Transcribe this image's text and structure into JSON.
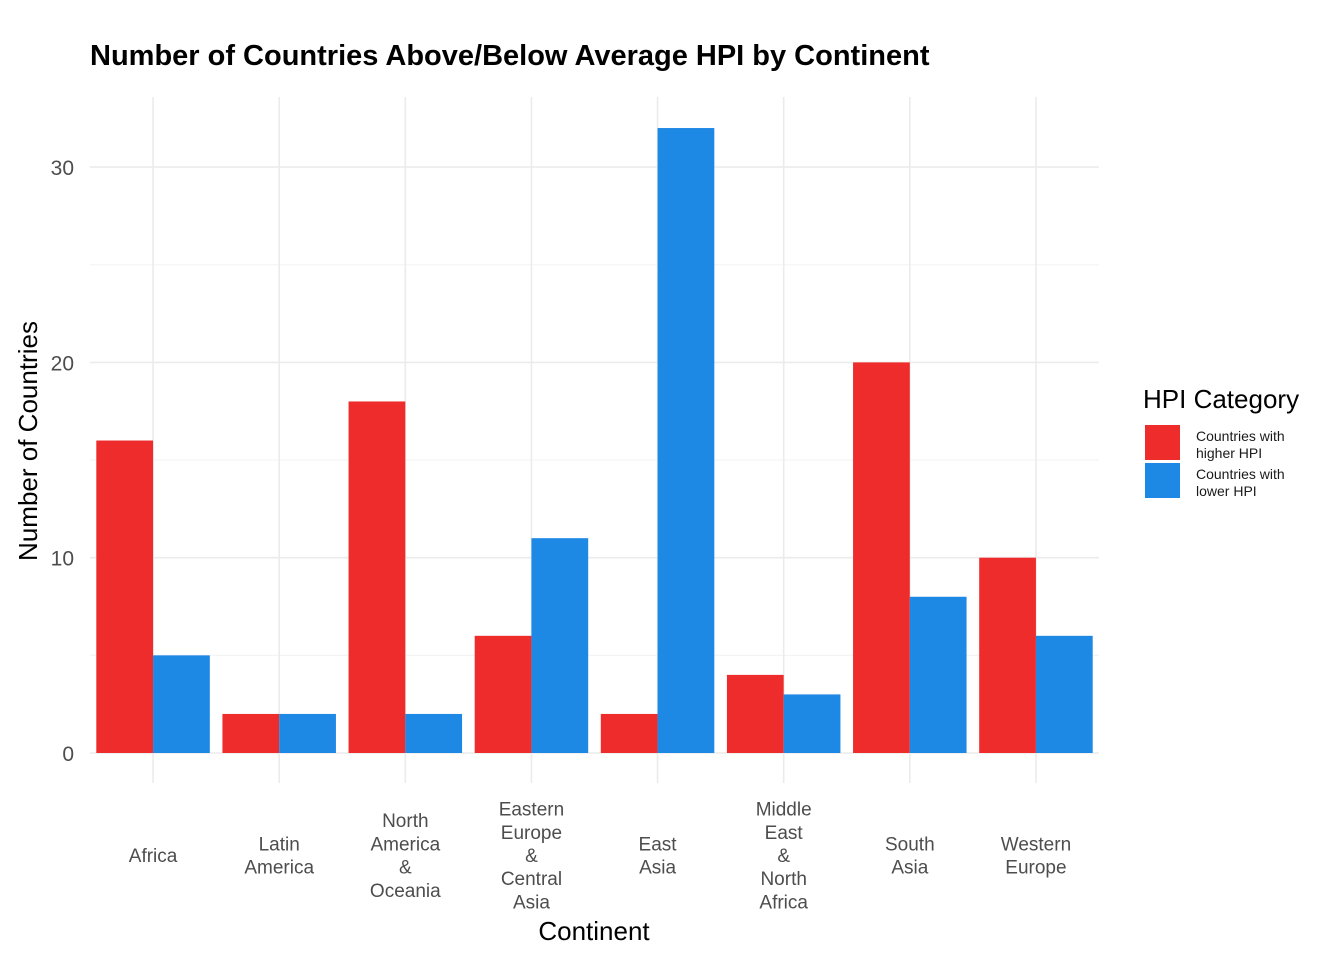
{
  "chart_data": {
    "type": "bar",
    "title": "Number of Countries Above/Below Average HPI by Continent",
    "xlabel": "Continent",
    "ylabel": "Number of Countries",
    "ylim": [
      0,
      33.6
    ],
    "yticks": [
      0,
      10,
      20,
      30
    ],
    "grid": true,
    "legend_title": "HPI Category",
    "legend_position": "right",
    "categories": [
      [
        "Africa"
      ],
      [
        "Latin",
        "America"
      ],
      [
        "North",
        "America",
        "&",
        "Oceania"
      ],
      [
        "Eastern",
        "Europe",
        "&",
        "Central",
        "Asia"
      ],
      [
        "East",
        "Asia"
      ],
      [
        "Middle",
        "East",
        "&",
        "North",
        "Africa"
      ],
      [
        "South",
        "Asia"
      ],
      [
        "Western",
        "Europe"
      ]
    ],
    "series": [
      {
        "name": [
          "Countries with",
          "higher HPI"
        ],
        "color": "#ee2c2c",
        "values": [
          16,
          2,
          18,
          6,
          2,
          4,
          20,
          10
        ]
      },
      {
        "name": [
          "Countries with",
          "lower HPI"
        ],
        "color": "#1e88e5",
        "values": [
          5,
          2,
          2,
          11,
          32,
          3,
          8,
          6
        ]
      }
    ]
  }
}
